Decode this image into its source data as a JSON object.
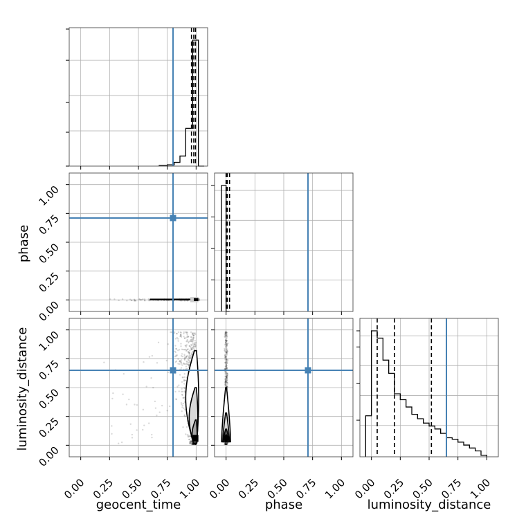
{
  "colors": {
    "truth": "#4682b4",
    "histogram": "#000000",
    "quantile": "#000000",
    "grid": "#b0b0b0",
    "samples": "#000000",
    "contour_fill": [
      "#ffffff",
      "#d9d9d9",
      "#a6a6a6",
      "#595959",
      "#000000"
    ]
  },
  "chart_data": {
    "type": "corner",
    "parameters": [
      "geocent_time",
      "phase",
      "luminosity_distance"
    ],
    "truths": {
      "geocent_time": 0.8,
      "phase": 0.71,
      "luminosity_distance": 0.65
    },
    "tick_labels": [
      "0.00",
      "0.25",
      "0.50",
      "0.75",
      "1.00"
    ],
    "tick_values": [
      0,
      0.25,
      0.5,
      0.75,
      1.0
    ],
    "xlim": [
      -0.1,
      1.1
    ],
    "grid": true,
    "histograms": [
      {
        "parameter": "geocent_time",
        "bin_edges": [
          0.68,
          0.75,
          0.81,
          0.86,
          0.91,
          0.97,
          1.02,
          1.07
        ],
        "counts": [
          0.005,
          0.01,
          0.03,
          0.08,
          0.3,
          1.0,
          0.0
        ],
        "quantiles": [
          0.96,
          0.98,
          0.995
        ]
      },
      {
        "parameter": "phase",
        "bin_edges": [
          -0.04,
          0.0,
          0.03
        ],
        "counts": [
          1.0,
          0.0
        ],
        "quantiles": [
          0.0,
          0.01,
          0.03
        ]
      },
      {
        "parameter": "luminosity_distance",
        "bin_edges": [
          -0.05,
          0.0,
          0.05,
          0.1,
          0.15,
          0.2,
          0.25,
          0.3,
          0.35,
          0.4,
          0.45,
          0.5,
          0.55,
          0.6,
          0.65,
          0.7,
          0.75,
          0.8,
          0.85,
          0.9,
          0.95,
          1.0
        ],
        "counts": [
          0.28,
          0.86,
          0.81,
          0.66,
          0.57,
          0.43,
          0.39,
          0.34,
          0.29,
          0.26,
          0.23,
          0.21,
          0.19,
          0.16,
          0.13,
          0.12,
          0.1,
          0.08,
          0.06,
          0.04,
          0.01
        ],
        "quantiles": [
          0.05,
          0.2,
          0.52
        ]
      }
    ]
  }
}
